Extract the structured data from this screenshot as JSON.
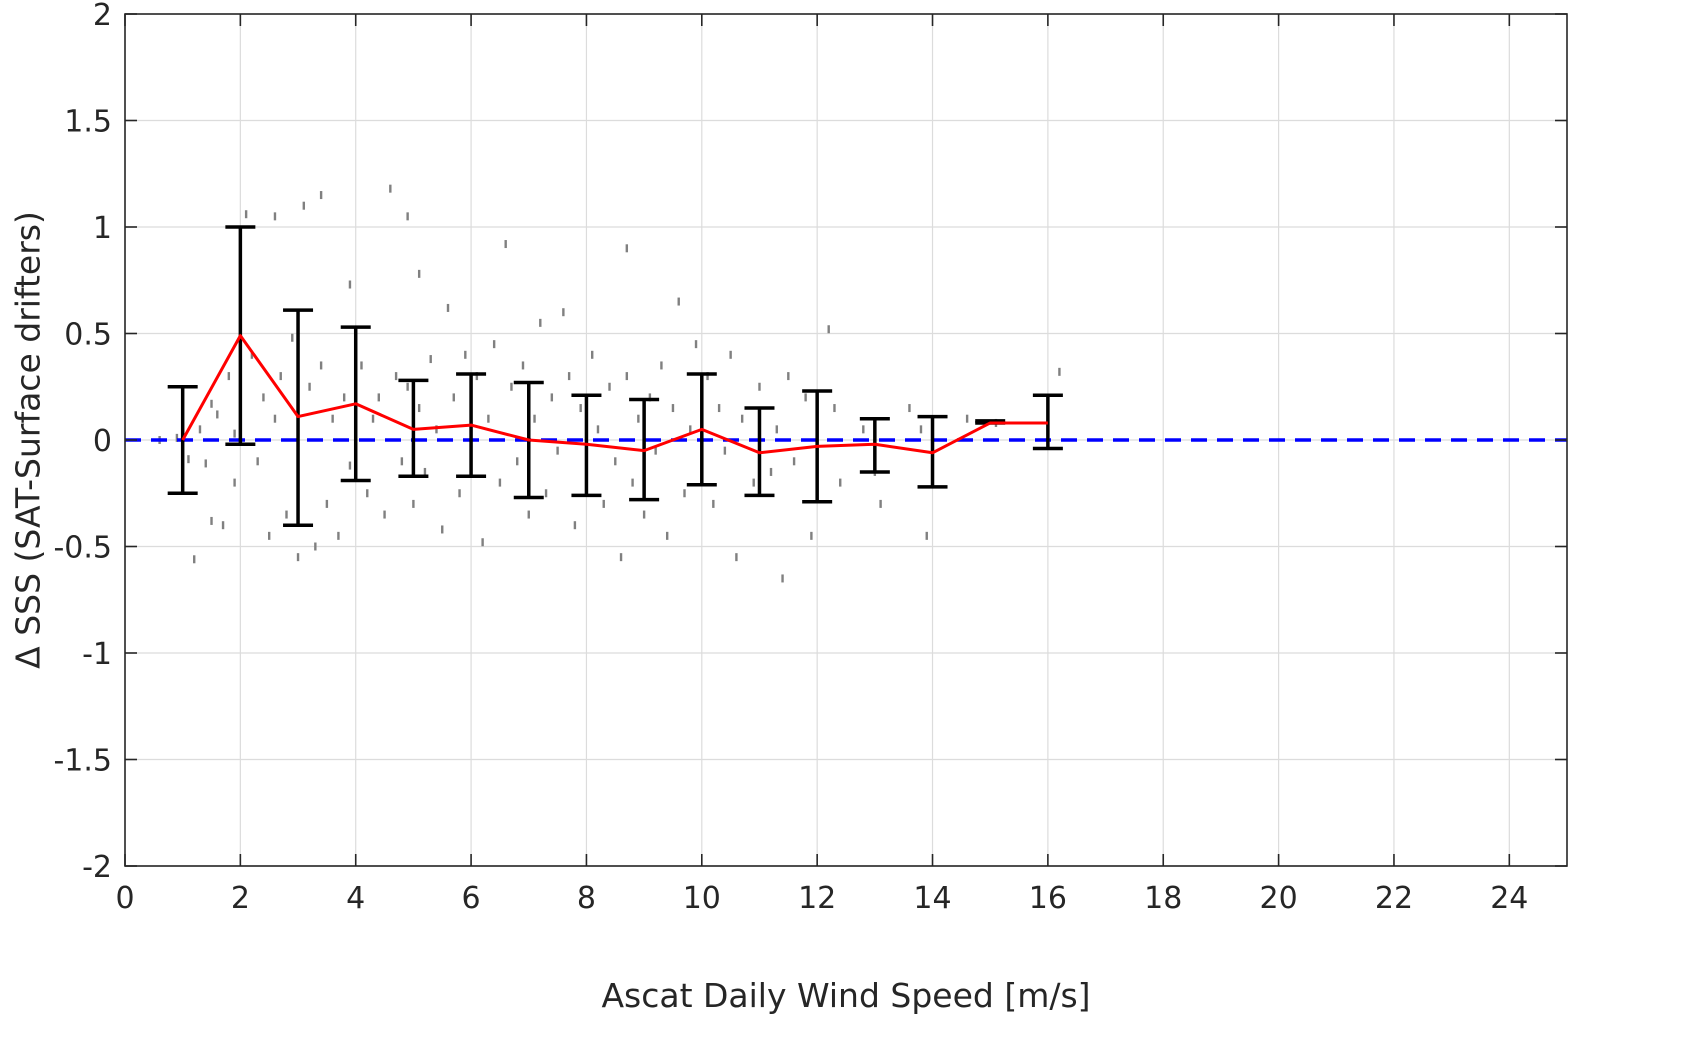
{
  "chart_data": {
    "type": "scatter",
    "title": "",
    "xlabel": "Ascat Daily Wind Speed [m/s]",
    "ylabel": "Δ SSS (SAT-Surface drifters)",
    "xlim": [
      0,
      25
    ],
    "ylim": [
      -2,
      2
    ],
    "x_ticks": [
      0,
      2,
      4,
      6,
      8,
      10,
      12,
      14,
      16,
      18,
      20,
      22,
      24
    ],
    "x_tick_labels": [
      "0",
      "2",
      "4",
      "6",
      "8",
      "10",
      "12",
      "14",
      "16",
      "18",
      "20",
      "22",
      "24"
    ],
    "y_ticks": [
      -2,
      -1.5,
      -1,
      -0.5,
      0,
      0.5,
      1,
      1.5,
      2
    ],
    "y_tick_labels": [
      "-2",
      "-1.5",
      "-1",
      "-0.5",
      "0",
      "0.5",
      "1",
      "1.5",
      "2"
    ],
    "grid": true,
    "colors": {
      "scatter": "#808080",
      "mean_line": "#ff0000",
      "error_bars": "#000000",
      "zero_line": "#0000ff"
    },
    "series": [
      {
        "type": "line",
        "x": [
          1,
          2,
          3,
          4,
          5,
          6,
          7,
          8,
          9,
          10,
          11,
          12,
          13,
          14,
          15,
          16
        ],
        "y": [
          0.0,
          0.49,
          0.11,
          0.17,
          0.05,
          0.07,
          0.0,
          -0.02,
          -0.05,
          0.05,
          -0.06,
          -0.03,
          -0.02,
          -0.06,
          0.08,
          0.08
        ],
        "error_low": [
          -0.25,
          -0.02,
          -0.4,
          -0.19,
          -0.17,
          -0.17,
          -0.27,
          -0.26,
          -0.28,
          -0.21,
          -0.26,
          -0.29,
          -0.15,
          -0.22,
          0.08,
          -0.04
        ],
        "error_high": [
          0.25,
          1.0,
          0.61,
          0.53,
          0.28,
          0.31,
          0.27,
          0.21,
          0.19,
          0.31,
          0.15,
          0.23,
          0.1,
          0.11,
          0.09,
          0.21
        ]
      },
      {
        "type": "line",
        "x": [
          0,
          25
        ],
        "y": [
          0,
          0
        ]
      },
      {
        "type": "scatter",
        "points": [
          [
            0.6,
            0.0
          ],
          [
            0.9,
            0.01
          ],
          [
            1.1,
            -0.09
          ],
          [
            1.2,
            -0.56
          ],
          [
            1.3,
            0.05
          ],
          [
            1.4,
            -0.11
          ],
          [
            1.5,
            0.17
          ],
          [
            1.5,
            -0.38
          ],
          [
            1.6,
            0.12
          ],
          [
            1.7,
            -0.4
          ],
          [
            1.8,
            0.3
          ],
          [
            1.9,
            0.03
          ],
          [
            2.1,
            1.06
          ],
          [
            2.0,
            0.61
          ],
          [
            1.9,
            -0.2
          ],
          [
            2.2,
            0.4
          ],
          [
            2.3,
            -0.1
          ],
          [
            2.4,
            0.2
          ],
          [
            2.5,
            -0.45
          ],
          [
            2.6,
            0.1
          ],
          [
            2.6,
            1.05
          ],
          [
            2.7,
            0.3
          ],
          [
            2.8,
            -0.35
          ],
          [
            2.9,
            0.48
          ],
          [
            3.0,
            -0.55
          ],
          [
            3.1,
            1.1
          ],
          [
            3.2,
            0.25
          ],
          [
            3.3,
            -0.5
          ],
          [
            3.4,
            0.35
          ],
          [
            3.4,
            1.15
          ],
          [
            3.5,
            -0.3
          ],
          [
            3.6,
            0.1
          ],
          [
            3.7,
            -0.45
          ],
          [
            3.8,
            0.2
          ],
          [
            3.9,
            0.73
          ],
          [
            3.9,
            -0.12
          ],
          [
            4.0,
            0.05
          ],
          [
            4.1,
            0.35
          ],
          [
            4.2,
            -0.25
          ],
          [
            4.3,
            0.1
          ],
          [
            4.4,
            0.2
          ],
          [
            4.5,
            -0.35
          ],
          [
            4.6,
            1.18
          ],
          [
            4.7,
            0.3
          ],
          [
            4.8,
            -0.1
          ],
          [
            4.9,
            0.25
          ],
          [
            4.9,
            1.05
          ],
          [
            5.0,
            -0.3
          ],
          [
            5.1,
            0.15
          ],
          [
            5.1,
            0.78
          ],
          [
            5.2,
            -0.15
          ],
          [
            5.3,
            0.38
          ],
          [
            5.4,
            0.05
          ],
          [
            5.5,
            -0.42
          ],
          [
            5.6,
            0.62
          ],
          [
            5.7,
            0.2
          ],
          [
            5.8,
            -0.25
          ],
          [
            5.9,
            0.4
          ],
          [
            6.0,
            -0.05
          ],
          [
            6.1,
            0.3
          ],
          [
            6.2,
            -0.48
          ],
          [
            6.3,
            0.1
          ],
          [
            6.4,
            0.45
          ],
          [
            6.5,
            -0.2
          ],
          [
            6.6,
            0.92
          ],
          [
            6.7,
            0.25
          ],
          [
            6.8,
            -0.1
          ],
          [
            6.9,
            0.35
          ],
          [
            7.0,
            -0.35
          ],
          [
            7.1,
            0.1
          ],
          [
            7.2,
            0.55
          ],
          [
            7.3,
            -0.25
          ],
          [
            7.4,
            0.2
          ],
          [
            7.5,
            -0.05
          ],
          [
            7.6,
            0.6
          ],
          [
            7.7,
            0.3
          ],
          [
            7.8,
            -0.4
          ],
          [
            7.9,
            0.15
          ],
          [
            8.0,
            -0.2
          ],
          [
            8.1,
            0.4
          ],
          [
            8.2,
            0.05
          ],
          [
            8.3,
            -0.3
          ],
          [
            8.4,
            0.25
          ],
          [
            8.5,
            -0.1
          ],
          [
            8.6,
            -0.55
          ],
          [
            8.7,
            0.3
          ],
          [
            8.7,
            0.9
          ],
          [
            8.8,
            -0.2
          ],
          [
            8.9,
            0.1
          ],
          [
            9.0,
            -0.35
          ],
          [
            9.1,
            0.2
          ],
          [
            9.2,
            -0.05
          ],
          [
            9.3,
            0.35
          ],
          [
            9.4,
            -0.45
          ],
          [
            9.5,
            0.15
          ],
          [
            9.6,
            0.65
          ],
          [
            9.7,
            -0.25
          ],
          [
            9.8,
            0.05
          ],
          [
            9.9,
            0.45
          ],
          [
            10.0,
            -0.1
          ],
          [
            10.1,
            0.3
          ],
          [
            10.2,
            -0.3
          ],
          [
            10.3,
            0.15
          ],
          [
            10.4,
            -0.05
          ],
          [
            10.5,
            0.4
          ],
          [
            10.6,
            -0.55
          ],
          [
            10.7,
            0.1
          ],
          [
            10.9,
            -0.2
          ],
          [
            11.0,
            0.25
          ],
          [
            11.2,
            -0.15
          ],
          [
            11.3,
            0.05
          ],
          [
            11.4,
            -0.65
          ],
          [
            11.5,
            0.3
          ],
          [
            11.6,
            -0.1
          ],
          [
            11.8,
            0.2
          ],
          [
            11.9,
            -0.45
          ],
          [
            12.0,
            -0.05
          ],
          [
            12.2,
            0.52
          ],
          [
            12.3,
            0.15
          ],
          [
            12.4,
            -0.2
          ],
          [
            12.8,
            0.05
          ],
          [
            13.0,
            -0.15
          ],
          [
            13.1,
            -0.3
          ],
          [
            13.6,
            0.15
          ],
          [
            13.8,
            0.05
          ],
          [
            13.9,
            -0.45
          ],
          [
            14.0,
            0.0
          ],
          [
            14.6,
            0.1
          ],
          [
            15.1,
            0.08
          ],
          [
            16.2,
            0.32
          ]
        ]
      }
    ]
  }
}
